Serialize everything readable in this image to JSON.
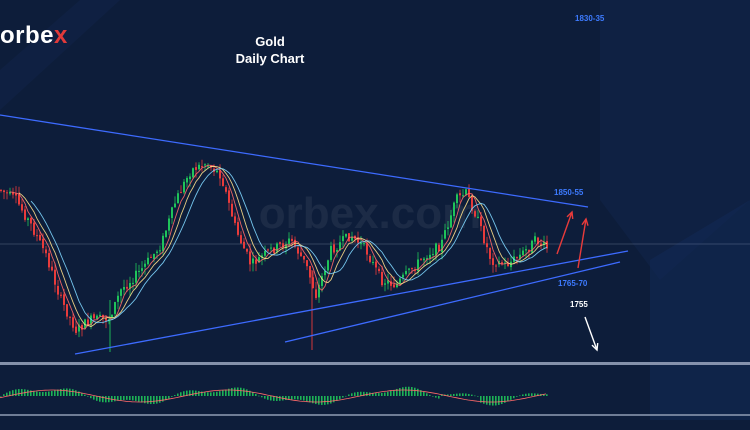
{
  "brand": {
    "prefix": "orbe",
    "suffix": "x",
    "watermark": "orbex.com"
  },
  "chart_data": {
    "type": "candlestick",
    "title": "Gold",
    "subtitle": "Daily Chart",
    "levels": [
      {
        "label": "1830-35",
        "color": "#3d7bff"
      },
      {
        "label": "1850-55",
        "color": "#3d7bff"
      },
      {
        "label": "1765-70",
        "color": "#3d7bff"
      },
      {
        "label": "1755",
        "color": "#ffffff"
      }
    ],
    "colors": {
      "background": "#0d1d3a",
      "bull": "#1fc45a",
      "bear": "#e83b3b",
      "trendline": "#3d6bff",
      "arrow_up": "#e83b3b",
      "arrow_down": "#ffffff",
      "ma_fast": "#ff6a6a",
      "ma_mid": "#ffe08a",
      "ma_slow": "#7fd7ff"
    }
  }
}
